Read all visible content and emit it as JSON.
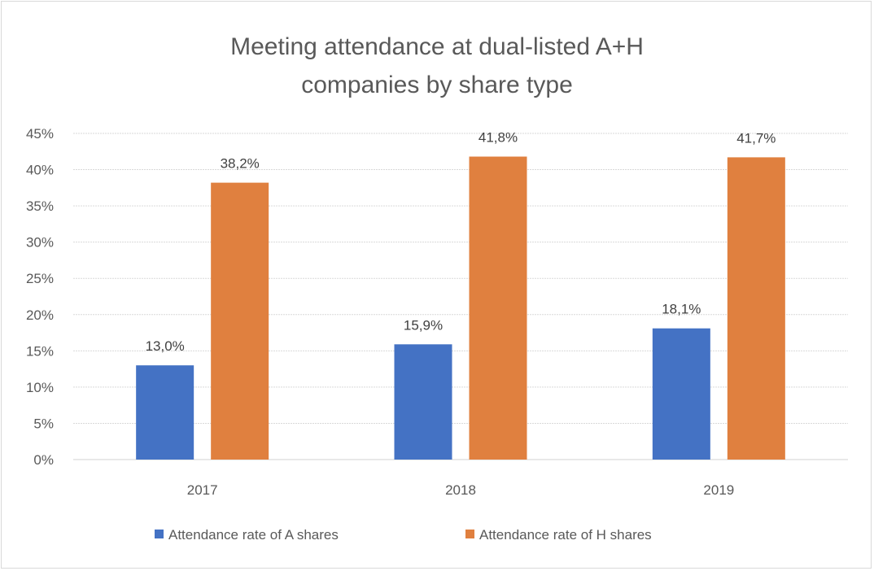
{
  "chart_data": {
    "type": "bar",
    "title_lines": [
      "Meeting attendance at dual-listed A+H",
      "companies by share type"
    ],
    "categories": [
      "2017",
      "2018",
      "2019"
    ],
    "series": [
      {
        "name": "Attendance rate of A shares",
        "color": "#4472C4",
        "values": [
          13.0,
          15.9,
          18.1
        ],
        "labels": [
          "13,0%",
          "15,9%",
          "18,1%"
        ]
      },
      {
        "name": "Attendance rate of H shares",
        "color": "#E0803F",
        "values": [
          38.2,
          41.8,
          41.7
        ],
        "labels": [
          "38,2%",
          "41,8%",
          "41,7%"
        ]
      }
    ],
    "ylim": [
      0,
      45
    ],
    "yticks": [
      0,
      5,
      10,
      15,
      20,
      25,
      30,
      35,
      40,
      45
    ],
    "ytick_labels": [
      "0%",
      "5%",
      "10%",
      "15%",
      "20%",
      "25%",
      "30%",
      "35%",
      "40%",
      "45%"
    ],
    "xlabel": "",
    "ylabel": "",
    "grid": true,
    "legend_position": "bottom"
  }
}
